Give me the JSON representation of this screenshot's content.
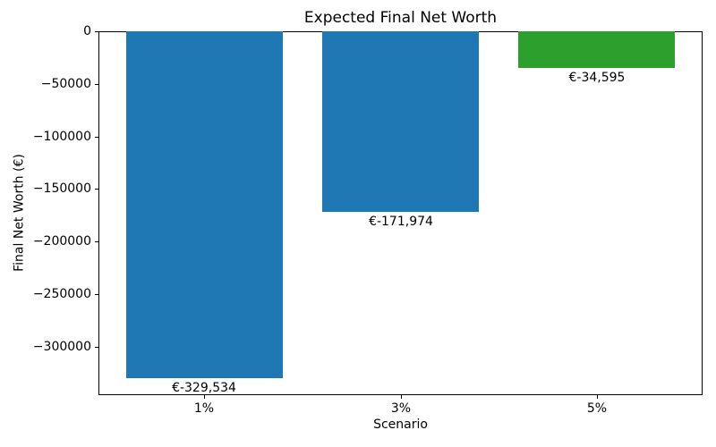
{
  "chart_data": {
    "type": "bar",
    "title": "Expected Final Net Worth",
    "xlabel": "Scenario",
    "ylabel": "Final Net Worth (€)",
    "categories": [
      "1%",
      "3%",
      "5%"
    ],
    "values": [
      -329534,
      -171974,
      -34595
    ],
    "bar_labels": [
      "€-329,534",
      "€-171,974",
      "€-34,595"
    ],
    "bar_colors": [
      "#1f77b4",
      "#1f77b4",
      "#2ca02c"
    ],
    "bar_width_fraction": 0.8,
    "ylim": [
      -346010,
      0
    ],
    "yticks": [
      0,
      -50000,
      -100000,
      -150000,
      -200000,
      -250000,
      -300000
    ],
    "ytick_labels": [
      "0",
      "−50000",
      "−100000",
      "−150000",
      "−200000",
      "−250000",
      "−300000"
    ],
    "grid": false,
    "legend": null,
    "background_color": "#ffffff",
    "spine_color": "#000000",
    "text_color": "#000000"
  }
}
